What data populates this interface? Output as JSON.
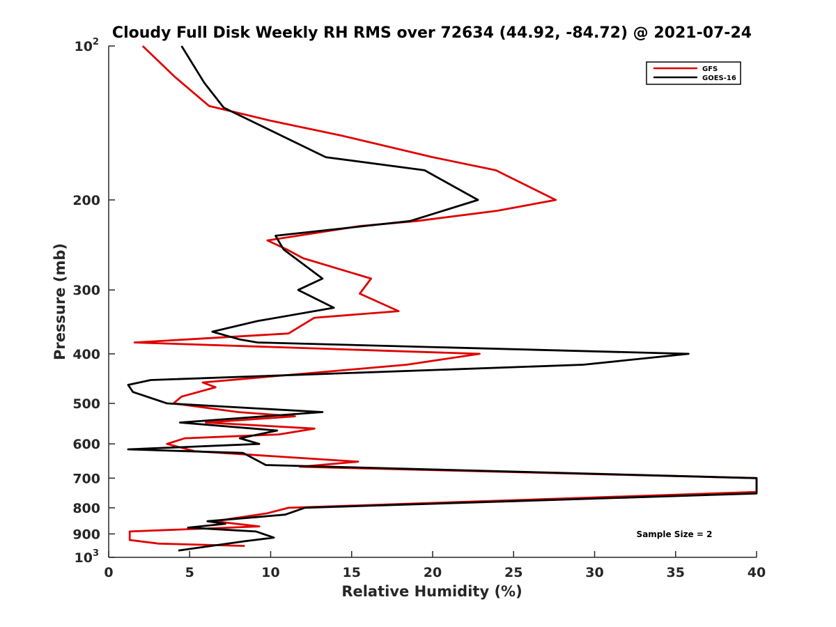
{
  "chart_data": {
    "type": "line",
    "title": "Cloudy Full Disk Weekly RH RMS over 72634 (44.92, -84.72) @ 2021-07-24",
    "xlabel": "Relative Humidity (%)",
    "ylabel": "Pressure (mb)",
    "xlim": [
      0,
      40
    ],
    "ylim": [
      100,
      1000
    ],
    "yscale": "log",
    "y_reversed": true,
    "xticks": [
      0,
      5,
      10,
      15,
      20,
      25,
      30,
      35,
      40
    ],
    "yticks": [
      {
        "value": 100,
        "base": "10",
        "exp": "2"
      },
      {
        "value": 200,
        "label": "200"
      },
      {
        "value": 300,
        "label": "300"
      },
      {
        "value": 400,
        "label": "400"
      },
      {
        "value": 500,
        "label": "500"
      },
      {
        "value": 600,
        "label": "600"
      },
      {
        "value": 700,
        "label": "700"
      },
      {
        "value": 800,
        "label": "800"
      },
      {
        "value": 900,
        "label": "900"
      },
      {
        "value": 1000,
        "base": "10",
        "exp": "3"
      }
    ],
    "grid": false,
    "legend_position": "top-right",
    "annotation": "Sample Size = 2",
    "series": [
      {
        "name": "GFS",
        "color": "#e00000",
        "points": [
          [
            2.1,
            100
          ],
          [
            4.1,
            115
          ],
          [
            6.2,
            131
          ],
          [
            10.0,
            140
          ],
          [
            14.5,
            150
          ],
          [
            20.0,
            165
          ],
          [
            23.9,
            175
          ],
          [
            27.6,
            200
          ],
          [
            24.0,
            210
          ],
          [
            19.0,
            220
          ],
          [
            15.5,
            225
          ],
          [
            9.8,
            240
          ],
          [
            11.0,
            250
          ],
          [
            12.0,
            260
          ],
          [
            16.2,
            285
          ],
          [
            15.5,
            305
          ],
          [
            17.9,
            330
          ],
          [
            12.7,
            340
          ],
          [
            11.1,
            365
          ],
          [
            1.6,
            380
          ],
          [
            22.9,
            400
          ],
          [
            18.4,
            420
          ],
          [
            5.8,
            455
          ],
          [
            6.6,
            465
          ],
          [
            4.5,
            485
          ],
          [
            4.0,
            500
          ],
          [
            8.0,
            520
          ],
          [
            11.5,
            530
          ],
          [
            6.0,
            545
          ],
          [
            12.7,
            560
          ],
          [
            10.5,
            575
          ],
          [
            4.7,
            585
          ],
          [
            3.6,
            600
          ],
          [
            5.3,
            620
          ],
          [
            15.4,
            650
          ],
          [
            11.8,
            665
          ],
          [
            40.0,
            700
          ],
          [
            40.0,
            745
          ],
          [
            11.1,
            800
          ],
          [
            9.8,
            820
          ],
          [
            6.5,
            850
          ],
          [
            9.3,
            870
          ],
          [
            1.3,
            890
          ],
          [
            1.3,
            925
          ],
          [
            3.1,
            940
          ],
          [
            8.4,
            950
          ]
        ]
      },
      {
        "name": "GOES-16",
        "color": "#000000",
        "points": [
          [
            4.5,
            100
          ],
          [
            5.9,
            118
          ],
          [
            7.1,
            132
          ],
          [
            13.4,
            165
          ],
          [
            19.5,
            175
          ],
          [
            22.8,
            200
          ],
          [
            18.6,
            220
          ],
          [
            10.3,
            235
          ],
          [
            10.8,
            250
          ],
          [
            13.2,
            285
          ],
          [
            11.7,
            300
          ],
          [
            13.9,
            325
          ],
          [
            9.2,
            345
          ],
          [
            6.4,
            362
          ],
          [
            8.1,
            375
          ],
          [
            9.2,
            380
          ],
          [
            35.8,
            400
          ],
          [
            29.3,
            420
          ],
          [
            2.6,
            450
          ],
          [
            1.2,
            460
          ],
          [
            1.5,
            475
          ],
          [
            3.6,
            500
          ],
          [
            13.2,
            520
          ],
          [
            4.4,
            545
          ],
          [
            10.4,
            565
          ],
          [
            8.1,
            585
          ],
          [
            9.3,
            600
          ],
          [
            1.2,
            615
          ],
          [
            8.3,
            625
          ],
          [
            9.7,
            660
          ],
          [
            40.0,
            700
          ],
          [
            40.0,
            750
          ],
          [
            12.1,
            800
          ],
          [
            10.9,
            825
          ],
          [
            6.1,
            850
          ],
          [
            7.2,
            860
          ],
          [
            4.9,
            875
          ],
          [
            9.1,
            890
          ],
          [
            10.2,
            915
          ],
          [
            8.4,
            930
          ],
          [
            4.3,
            970
          ]
        ]
      }
    ]
  }
}
